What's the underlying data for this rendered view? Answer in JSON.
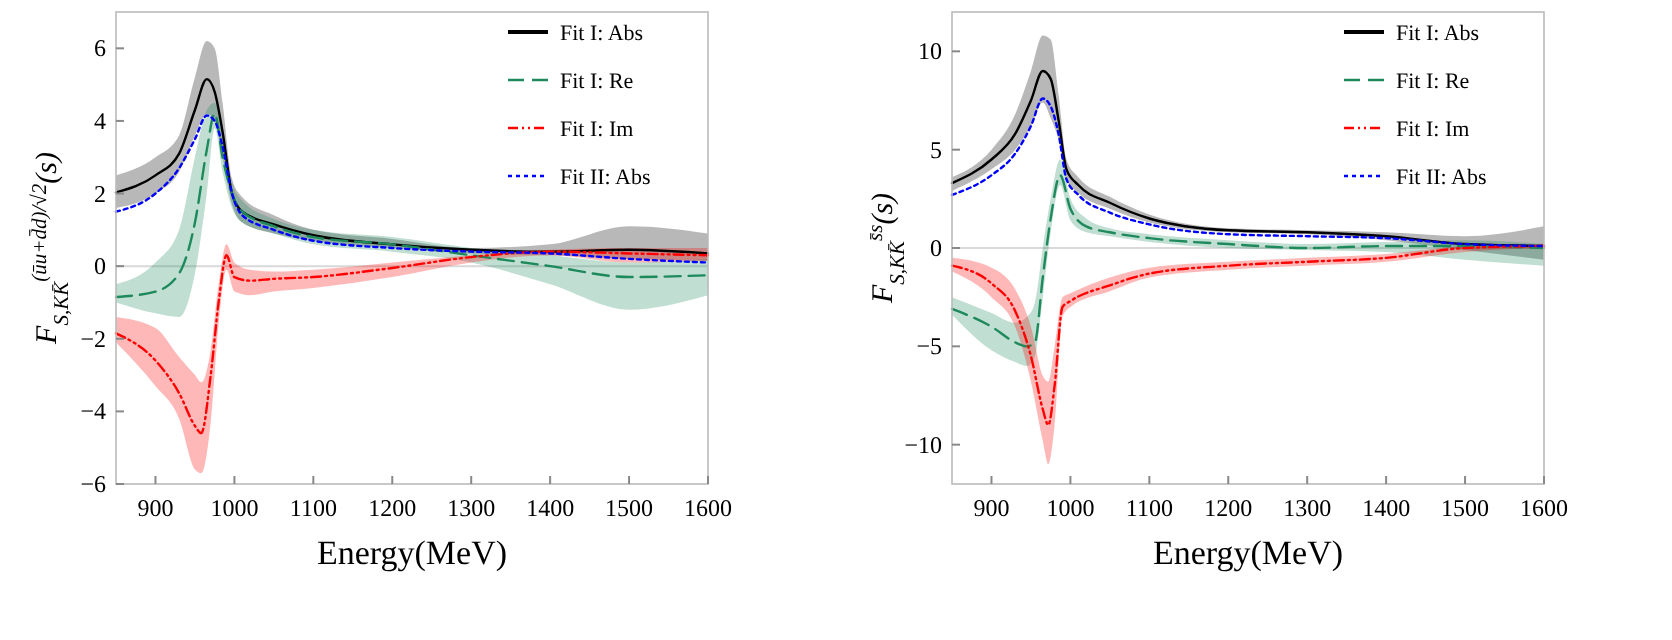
{
  "chart_data": [
    {
      "type": "line",
      "xlabel": "Energy(MeV)",
      "ylabel": "F$_{S,KK̄}$$^{(ūu+d̄d)/√2}$(s)",
      "xlim": [
        850,
        1600
      ],
      "xticks": [
        900,
        1000,
        1100,
        1200,
        1300,
        1400,
        1500,
        1600
      ],
      "ylim": [
        -6,
        7
      ],
      "yticks": [
        -6,
        -4,
        -2,
        0,
        2,
        4,
        6
      ],
      "legend": "top right",
      "grid": false,
      "ref_lines": [
        {
          "axis": "y",
          "value": 0,
          "color": "#d9d9d9"
        }
      ],
      "series": [
        {
          "name": "Fit  I: Abs",
          "color": "#000000",
          "line_style": "solid",
          "x": [
            850,
            900,
            930,
            950,
            965,
            975,
            985,
            997,
            1010,
            1050,
            1100,
            1200,
            1300,
            1400,
            1500,
            1600
          ],
          "values": [
            2.03,
            2.5,
            3.1,
            4.3,
            5.15,
            4.8,
            3.7,
            2.0,
            1.5,
            1.15,
            0.85,
            0.6,
            0.45,
            0.4,
            0.45,
            0.35
          ],
          "lower": [
            1.6,
            2.0,
            2.6,
            3.6,
            4.2,
            4.0,
            3.0,
            1.7,
            1.2,
            0.9,
            0.7,
            0.5,
            0.35,
            0.3,
            0.2,
            0.15
          ],
          "upper": [
            2.5,
            3.0,
            3.6,
            5.2,
            6.2,
            6.0,
            4.5,
            2.4,
            1.9,
            1.4,
            1.0,
            0.75,
            0.5,
            0.6,
            1.1,
            0.9
          ]
        },
        {
          "name": "Fit  I: Re",
          "color": "#1e8a5c",
          "line_style": "dashed",
          "x": [
            850,
            900,
            930,
            950,
            965,
            975,
            985,
            997,
            1010,
            1050,
            1100,
            1200,
            1300,
            1400,
            1500,
            1600
          ],
          "values": [
            -0.85,
            -0.7,
            -0.2,
            1.2,
            3.2,
            4.2,
            3.0,
            2.0,
            1.5,
            1.1,
            0.8,
            0.6,
            0.3,
            0.0,
            -0.3,
            -0.25
          ],
          "lower": [
            -1.0,
            -1.3,
            -1.4,
            -0.2,
            2.0,
            3.8,
            2.6,
            1.6,
            1.2,
            0.9,
            0.6,
            0.4,
            0.1,
            -0.5,
            -1.2,
            -0.8
          ],
          "upper": [
            -0.5,
            0.1,
            1.0,
            3.0,
            4.3,
            4.5,
            3.6,
            2.3,
            1.8,
            1.3,
            1.0,
            0.8,
            0.5,
            0.3,
            0.1,
            0.2
          ]
        },
        {
          "name": "Fit  I: Im",
          "color": "#ff0000",
          "line_style": "dashdot",
          "x": [
            850,
            900,
            930,
            950,
            958,
            970,
            980,
            990,
            1000,
            1020,
            1050,
            1100,
            1200,
            1300,
            1400,
            1500,
            1600
          ],
          "values": [
            -1.85,
            -2.6,
            -3.5,
            -4.4,
            -4.6,
            -3.0,
            -1.0,
            0.3,
            -0.3,
            -0.4,
            -0.35,
            -0.3,
            -0.05,
            0.25,
            0.4,
            0.35,
            0.3
          ],
          "lower": [
            -2.1,
            -3.3,
            -4.2,
            -5.6,
            -5.7,
            -4.3,
            -1.6,
            -0.1,
            -0.7,
            -0.8,
            -0.7,
            -0.6,
            -0.3,
            0.1,
            0.3,
            0.1,
            0.15
          ],
          "upper": [
            -1.4,
            -1.7,
            -2.5,
            -3.0,
            -3.2,
            -2.3,
            -0.5,
            0.6,
            0.1,
            -0.1,
            -0.15,
            -0.1,
            0.1,
            0.3,
            0.45,
            0.5,
            0.5
          ]
        },
        {
          "name": "Fit  II: Abs",
          "color": "#0000ff",
          "line_style": "dotted",
          "x": [
            850,
            900,
            930,
            950,
            965,
            975,
            985,
            997,
            1010,
            1050,
            1100,
            1200,
            1300,
            1400,
            1500,
            1600
          ],
          "values": [
            1.5,
            2.0,
            2.7,
            3.5,
            4.15,
            4.0,
            3.3,
            2.0,
            1.4,
            1.0,
            0.7,
            0.5,
            0.4,
            0.35,
            0.2,
            0.1
          ]
        }
      ]
    },
    {
      "type": "line",
      "xlabel": "Energy(MeV)",
      "ylabel": "F$_{S,KK̄}$$^{s̄s}$(s)",
      "xlim": [
        850,
        1600
      ],
      "xticks": [
        900,
        1000,
        1100,
        1200,
        1300,
        1400,
        1500,
        1600
      ],
      "ylim": [
        -12,
        12
      ],
      "yticks": [
        -10,
        -5,
        0,
        5,
        10
      ],
      "legend": "top right",
      "grid": false,
      "ref_lines": [
        {
          "axis": "y",
          "value": 0,
          "color": "#d9d9d9"
        }
      ],
      "series": [
        {
          "name": "Fit  I: Abs",
          "color": "#000000",
          "line_style": "solid",
          "x": [
            850,
            900,
            930,
            950,
            965,
            975,
            985,
            995,
            1010,
            1050,
            1100,
            1200,
            1300,
            1400,
            1500,
            1600
          ],
          "values": [
            3.3,
            4.5,
            5.8,
            7.5,
            9.0,
            8.6,
            6.5,
            4.0,
            3.2,
            2.3,
            1.5,
            0.9,
            0.8,
            0.6,
            0.2,
            0.1
          ],
          "lower": [
            2.9,
            4.0,
            5.0,
            6.2,
            7.4,
            6.6,
            5.5,
            3.5,
            2.8,
            2.0,
            1.3,
            0.8,
            0.7,
            0.4,
            -0.1,
            -0.6
          ],
          "upper": [
            3.6,
            5.0,
            6.8,
            9.0,
            10.8,
            10.6,
            7.8,
            4.5,
            3.6,
            2.6,
            1.7,
            1.0,
            0.9,
            0.8,
            0.6,
            1.1
          ]
        },
        {
          "name": "Fit  I: Re",
          "color": "#1e8a5c",
          "line_style": "dashed",
          "x": [
            850,
            900,
            930,
            945,
            955,
            965,
            975,
            987,
            1000,
            1020,
            1050,
            1100,
            1200,
            1300,
            1400,
            1500,
            1600
          ],
          "values": [
            -3.1,
            -4.0,
            -4.8,
            -5.0,
            -4.8,
            -1.5,
            1.5,
            3.7,
            2.0,
            1.1,
            0.8,
            0.5,
            0.2,
            0.0,
            0.1,
            0.1,
            0.0
          ],
          "lower": [
            -3.4,
            -5.2,
            -5.8,
            -6.0,
            -5.5,
            -2.5,
            0.8,
            3.2,
            1.4,
            0.8,
            0.6,
            0.3,
            0.0,
            -0.1,
            -0.2,
            -0.6,
            -0.9
          ],
          "upper": [
            -2.5,
            -3.3,
            -3.8,
            -3.5,
            -2.8,
            0.0,
            2.5,
            4.5,
            2.5,
            1.5,
            1.0,
            0.7,
            0.4,
            0.2,
            0.3,
            0.4,
            0.2
          ]
        },
        {
          "name": "Fit  I: Im",
          "color": "#ff0000",
          "line_style": "dashdot",
          "x": [
            850,
            900,
            930,
            950,
            965,
            972,
            980,
            990,
            1000,
            1050,
            1100,
            1200,
            1300,
            1400,
            1500,
            1600
          ],
          "values": [
            -0.9,
            -1.8,
            -3.2,
            -5.5,
            -8.2,
            -9.0,
            -7.0,
            -3.0,
            -2.7,
            -1.9,
            -1.3,
            -0.9,
            -0.7,
            -0.5,
            0.0,
            0.1
          ],
          "lower": [
            -1.2,
            -2.5,
            -4.0,
            -6.8,
            -9.8,
            -11.0,
            -9.0,
            -3.5,
            -3.0,
            -2.2,
            -1.5,
            -1.1,
            -0.9,
            -0.7,
            -0.2,
            0.0
          ],
          "upper": [
            -0.5,
            -1.0,
            -2.1,
            -4.0,
            -6.5,
            -6.8,
            -5.0,
            -2.5,
            -2.3,
            -1.5,
            -1.0,
            -0.7,
            -0.5,
            -0.3,
            0.1,
            0.2
          ]
        },
        {
          "name": "Fit  II: Abs",
          "color": "#0000ff",
          "line_style": "dotted",
          "x": [
            850,
            900,
            930,
            950,
            965,
            975,
            985,
            995,
            1010,
            1050,
            1100,
            1200,
            1300,
            1400,
            1500,
            1600
          ],
          "values": [
            2.7,
            3.7,
            4.8,
            6.2,
            7.6,
            7.2,
            5.8,
            3.5,
            2.7,
            1.8,
            1.2,
            0.7,
            0.6,
            0.5,
            0.2,
            0.1
          ]
        }
      ]
    }
  ]
}
